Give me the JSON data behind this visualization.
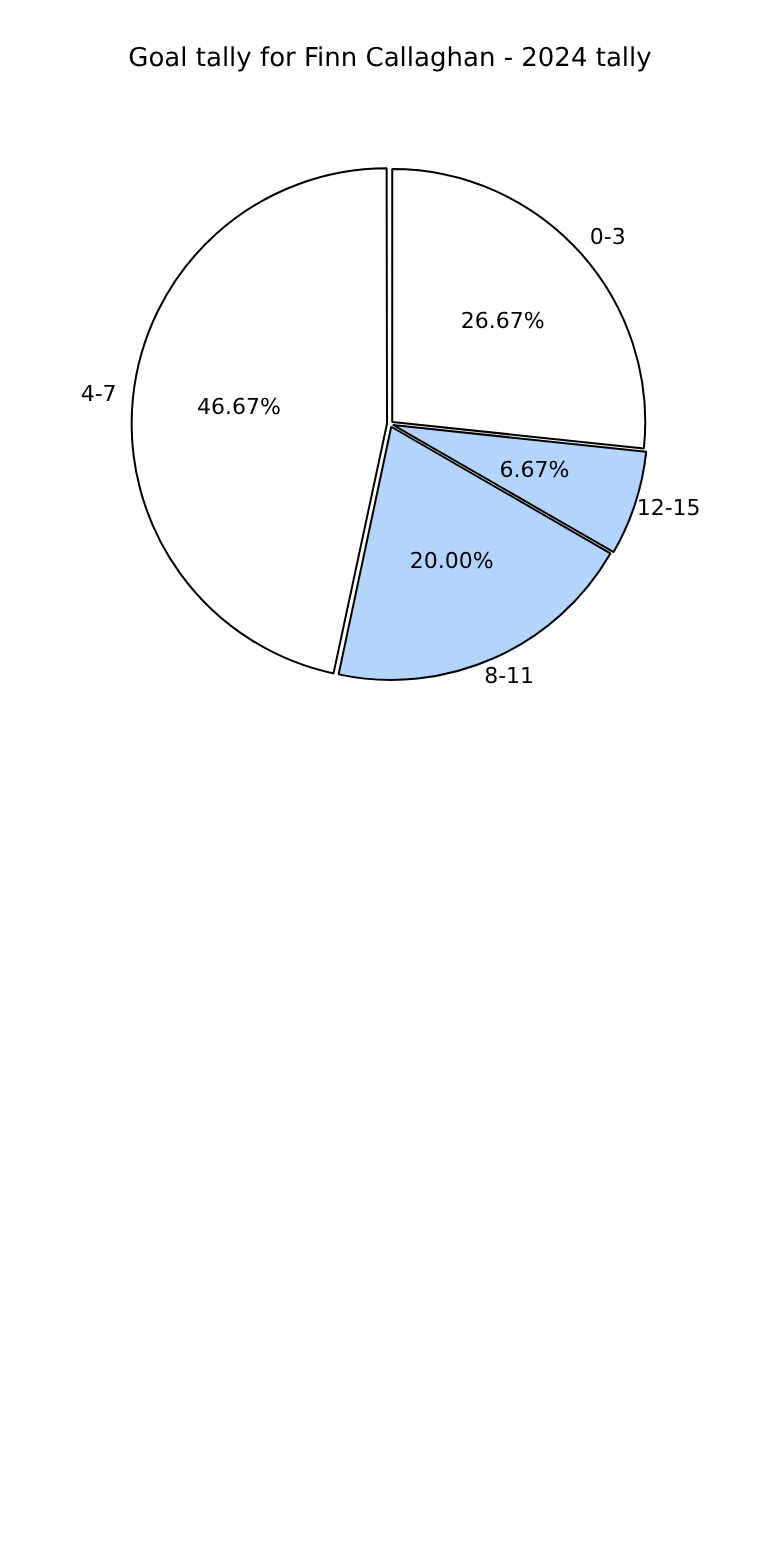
{
  "chart_data": {
    "type": "pie",
    "title": "Goal tally for Finn Callaghan - 2024 tally",
    "categories": [
      "0-3",
      "12-15",
      "8-11",
      "4-7"
    ],
    "values": [
      26.67,
      6.67,
      20.0,
      46.67
    ],
    "colors": [
      "#ffffff",
      "#b3d4fc",
      "#b3d4fc",
      "#ffffff"
    ],
    "value_labels": [
      "26.67%",
      "6.67%",
      "20.00%",
      "46.67%"
    ],
    "legend": false
  }
}
